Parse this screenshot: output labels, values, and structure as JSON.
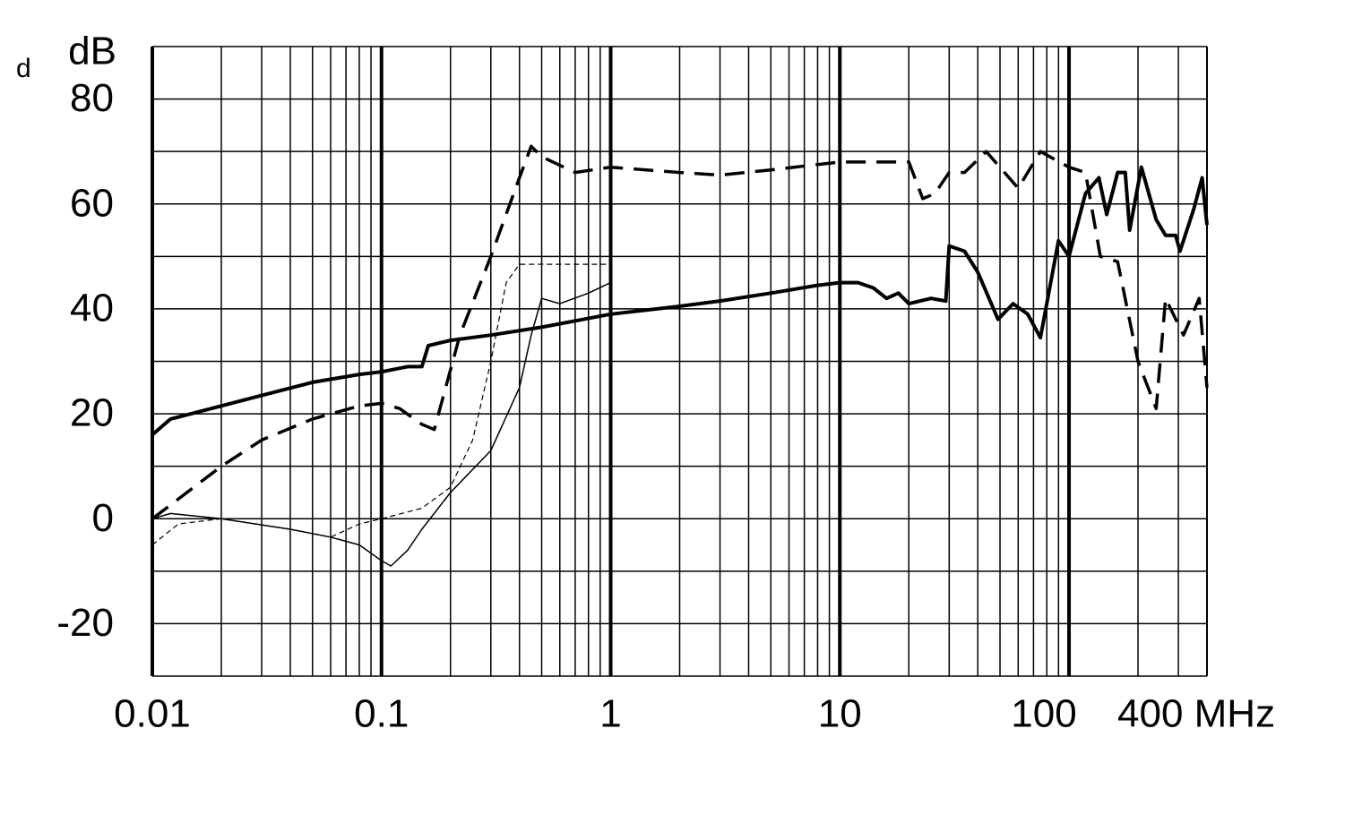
{
  "chart_data": {
    "type": "line",
    "y_label": "dB",
    "corner_text": "d",
    "xscale": "log",
    "xlim": [
      0.01,
      400
    ],
    "ylim": [
      -30,
      90
    ],
    "xticks": [
      0.01,
      0.1,
      1,
      10,
      100,
      {
        "value": 400,
        "label": "400 MHz"
      }
    ],
    "yticks": [
      -20,
      0,
      20,
      40,
      60,
      80
    ],
    "xgrid": [
      0.02,
      0.03,
      0.04,
      0.05,
      0.06,
      0.07,
      0.08,
      0.09,
      0.2,
      0.3,
      0.4,
      0.5,
      0.6,
      0.7,
      0.8,
      0.9,
      2,
      3,
      4,
      5,
      6,
      7,
      8,
      9,
      20,
      30,
      40,
      50,
      60,
      70,
      80,
      90,
      200,
      300
    ],
    "ygrid": [
      -30,
      -10,
      10,
      30,
      50,
      70,
      90
    ],
    "grid": true,
    "series": [
      {
        "color": "#000000",
        "width": 4,
        "dash": "none",
        "x": [
          0.01,
          0.012,
          0.02,
          0.03,
          0.05,
          0.08,
          0.1,
          0.13,
          0.15,
          0.16,
          0.2,
          0.3,
          0.5,
          1,
          2,
          3,
          5,
          8,
          10,
          12,
          14,
          16,
          18,
          20,
          25,
          29,
          30,
          35,
          40,
          49,
          57,
          66,
          75,
          90,
          100,
          118,
          135,
          146,
          163,
          176,
          184,
          207,
          240,
          264,
          292,
          305,
          350,
          381,
          400
        ],
        "values": [
          16,
          19,
          21.5,
          23.5,
          26,
          27.5,
          28,
          29,
          29,
          33,
          34,
          35,
          36.5,
          39,
          40.5,
          41.5,
          43,
          44.5,
          45,
          45,
          44,
          42,
          43,
          41,
          42,
          41.5,
          52,
          51,
          47,
          38,
          41,
          39,
          34.5,
          53,
          50,
          62,
          65,
          58,
          66,
          66,
          55,
          67,
          57,
          54,
          54,
          51,
          59,
          65,
          56
        ]
      },
      {
        "color": "#000000",
        "width": 3.5,
        "dash": "22 12",
        "x": [
          0.01,
          0.02,
          0.03,
          0.05,
          0.08,
          0.1,
          0.12,
          0.15,
          0.17,
          0.18,
          0.22,
          0.3,
          0.4,
          0.45,
          0.5,
          0.7,
          1,
          2,
          3,
          5,
          10,
          20,
          23,
          26,
          30,
          35,
          43.5,
          60,
          75,
          100,
          118,
          137,
          163,
          200,
          240,
          264,
          316,
          370,
          400
        ],
        "values": [
          0,
          10,
          15,
          19,
          21.5,
          22,
          21,
          18,
          17,
          21,
          35,
          50,
          65,
          71,
          69,
          66,
          67,
          66,
          65.5,
          66.5,
          68,
          68,
          61,
          62,
          66,
          66,
          70,
          63,
          70,
          67,
          66,
          50,
          49,
          30,
          21,
          42,
          35,
          42,
          25
        ]
      },
      {
        "color": "#000000",
        "width": 1.5,
        "dash": "none",
        "x": [
          0.01,
          0.012,
          0.02,
          0.04,
          0.06,
          0.08,
          0.1,
          0.11,
          0.13,
          0.15,
          0.2,
          0.3,
          0.4,
          0.45,
          0.5,
          0.6,
          0.8,
          1
        ],
        "values": [
          0,
          1,
          0,
          -2,
          -3.5,
          -5,
          -8,
          -9,
          -6,
          -2,
          5,
          13,
          25,
          35,
          42,
          41,
          43,
          45
        ]
      },
      {
        "color": "#000000",
        "width": 1.2,
        "dash": "6 4",
        "x": [
          0.01,
          0.013,
          0.02,
          0.04,
          0.06,
          0.08,
          0.1,
          0.15,
          0.2,
          0.25,
          0.3,
          0.35,
          0.4,
          1
        ],
        "values": [
          -5,
          -1,
          0,
          -2,
          -3.5,
          -1,
          0,
          2,
          6,
          15,
          30,
          45,
          48.5,
          48.5
        ]
      }
    ]
  }
}
